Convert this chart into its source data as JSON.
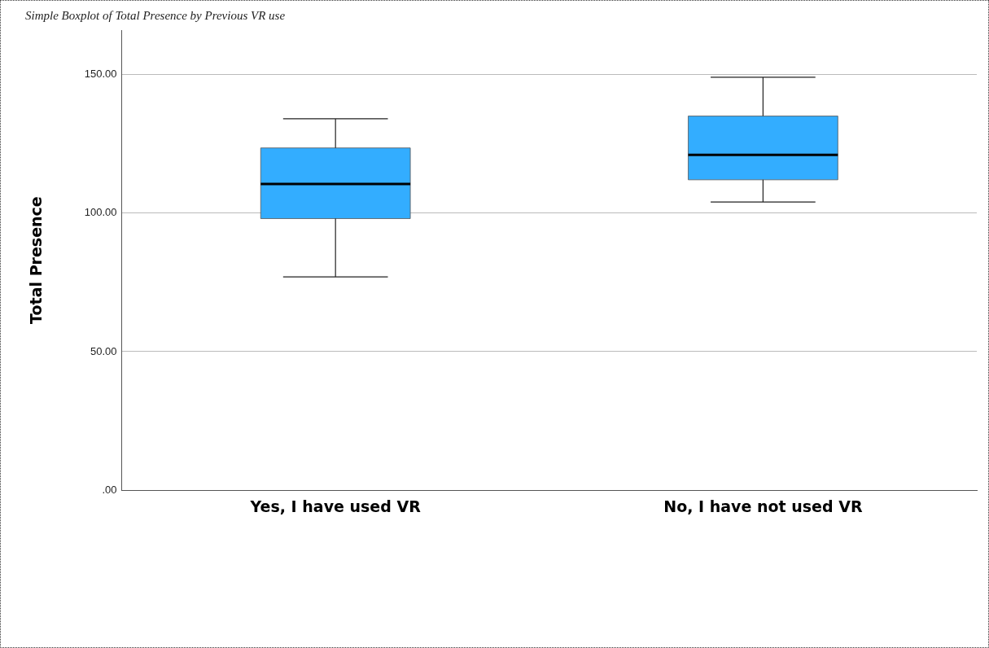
{
  "chart_data": {
    "type": "box",
    "title": "Simple Boxplot of Total Presence by Previous VR use",
    "ylabel": "Total Presence",
    "categories": [
      "Yes, I have used VR",
      "No, I have not used VR"
    ],
    "series": [
      {
        "color": "#33adff",
        "boxes": [
          {
            "low": 77,
            "q1": 98,
            "median": 110.5,
            "q3": 123.5,
            "high": 134
          },
          {
            "low": 104,
            "q1": 112,
            "median": 121,
            "q3": 135,
            "high": 149
          }
        ]
      }
    ],
    "ylim": [
      0,
      166
    ],
    "yticks": [
      {
        "value": 0,
        "label": ".00"
      },
      {
        "value": 50,
        "label": "50.00"
      },
      {
        "value": 100,
        "label": "100.00"
      },
      {
        "value": 150,
        "label": "150.00"
      }
    ],
    "grid": "y"
  }
}
